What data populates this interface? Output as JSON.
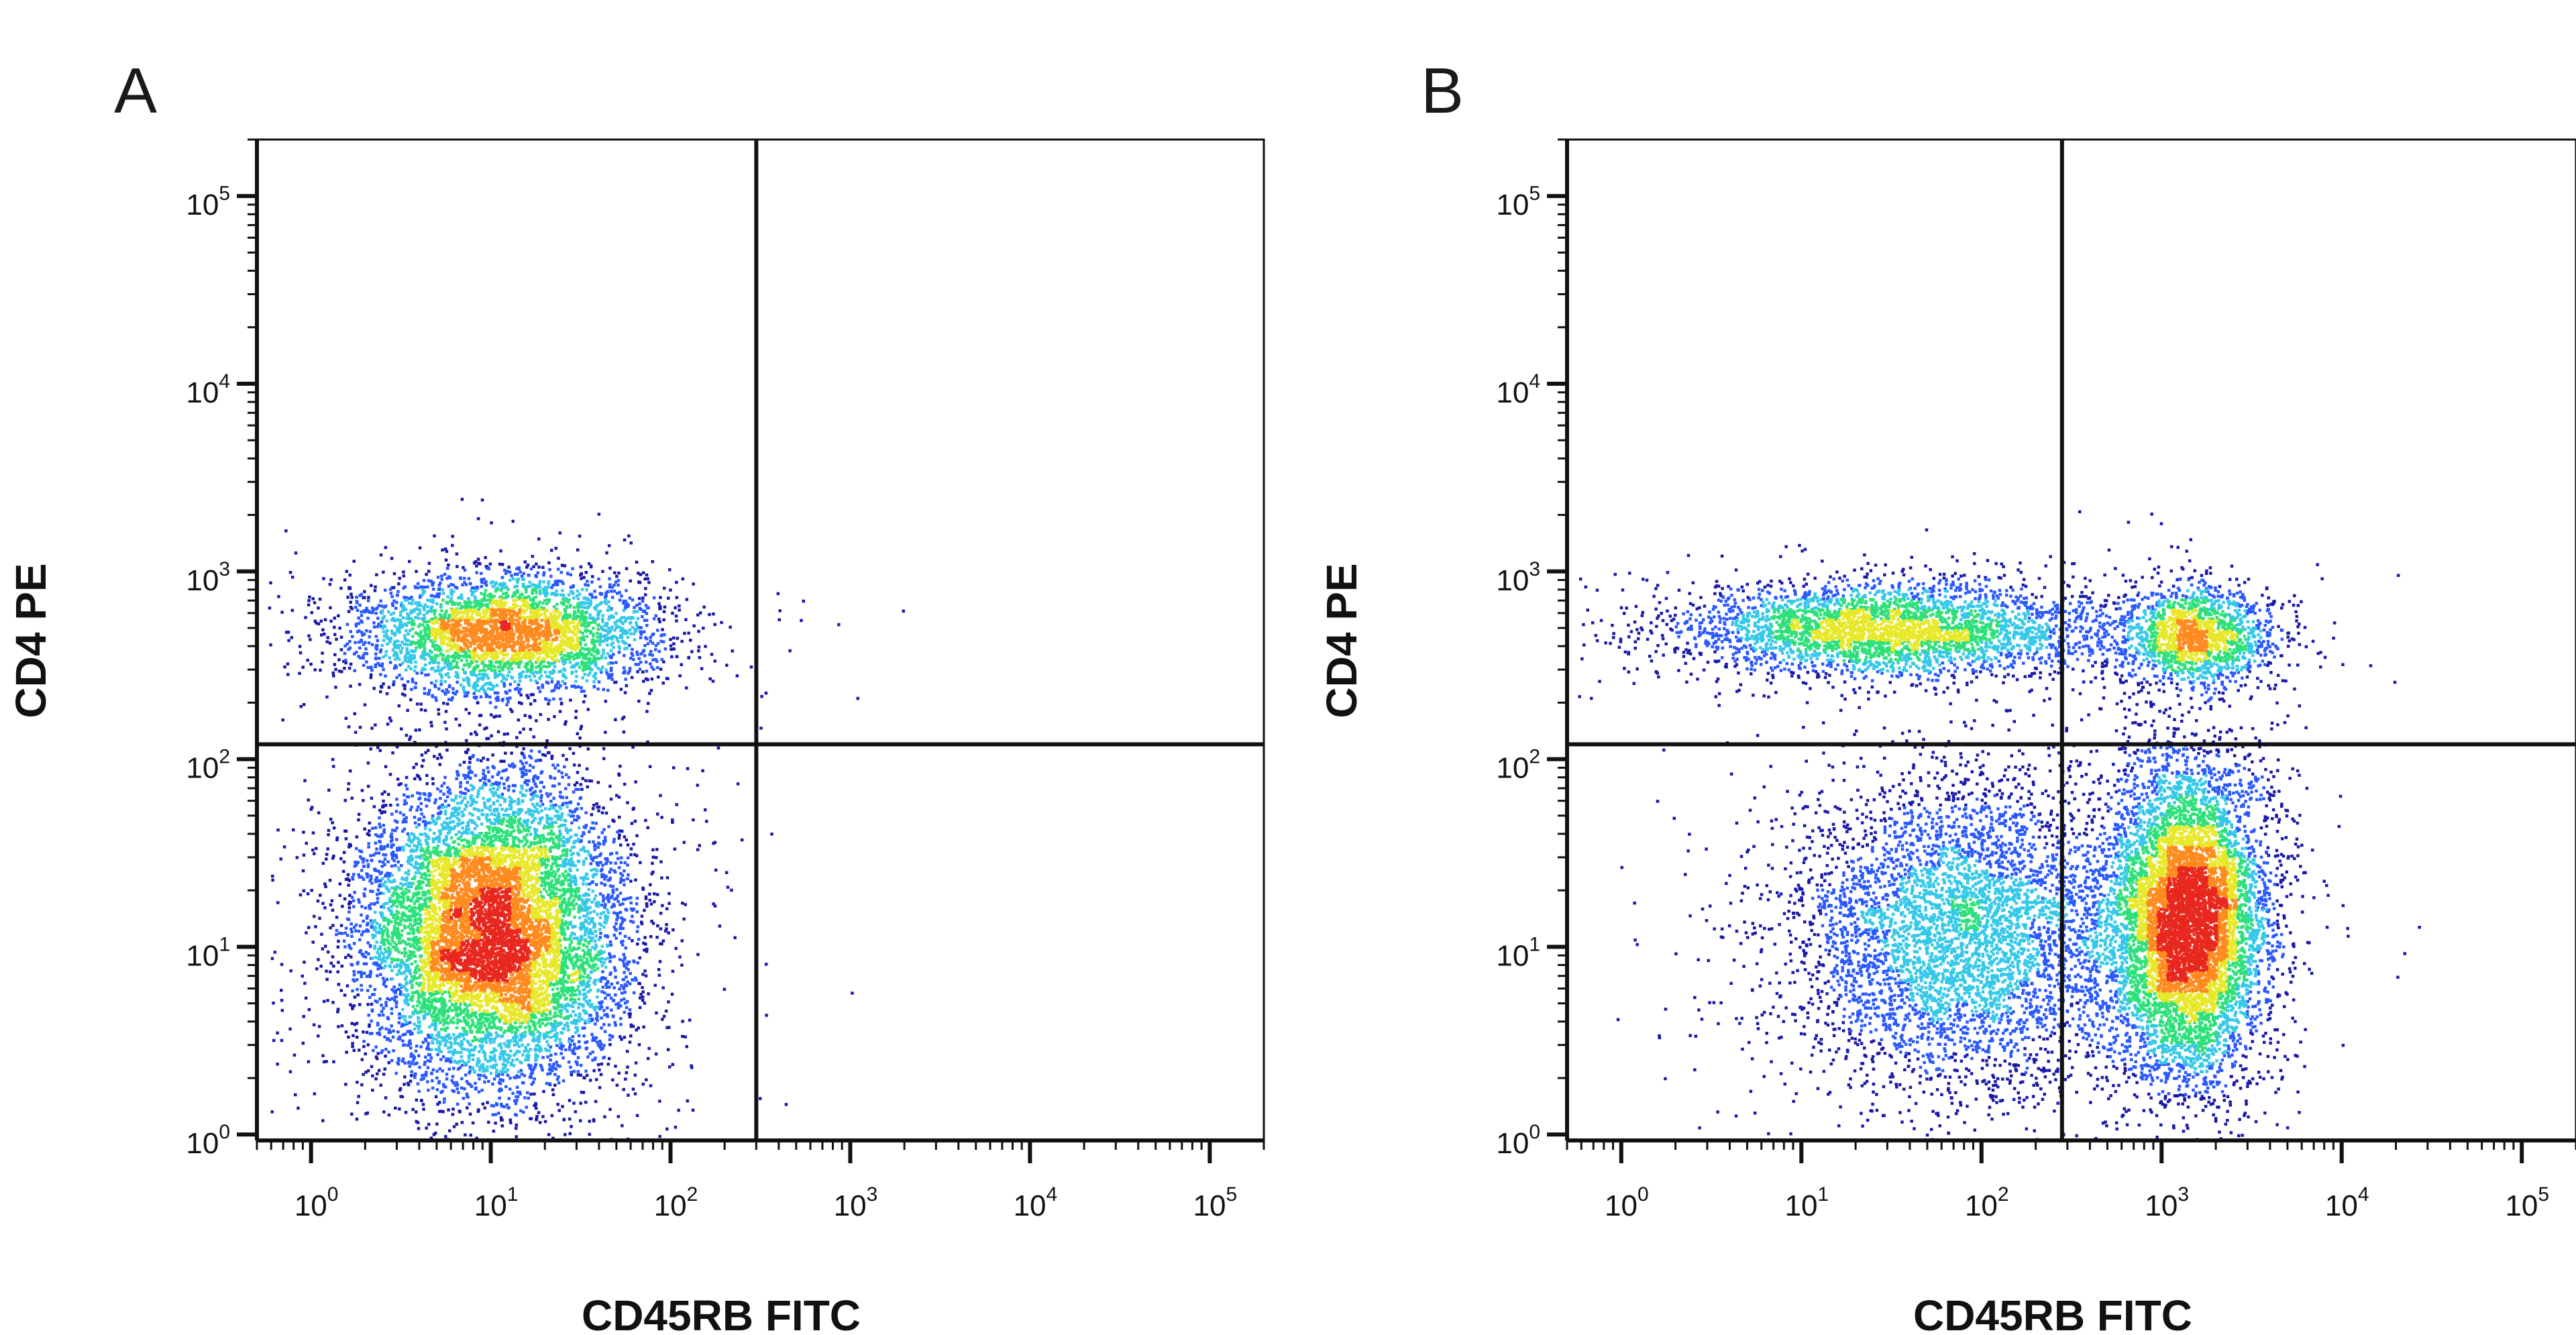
{
  "chart_data": [
    {
      "type": "scatter",
      "panel_label": "A",
      "xlabel": "CD45RB FITC",
      "ylabel": "CD4 PE",
      "x_scale": "log",
      "y_scale": "log",
      "x_tick_labels": [
        "10^0",
        "10^1",
        "10^2",
        "10^3",
        "10^4",
        "10^5"
      ],
      "y_tick_labels": [
        "10^0",
        "10^1",
        "10^2",
        "10^3",
        "10^4",
        "10^5"
      ],
      "xlim": [
        0.5,
        200000
      ],
      "ylim": [
        0.93,
        200000
      ],
      "quadrant_gate": {
        "x": 300,
        "y": 120
      },
      "grid": false,
      "colormap": [
        "#1a1aa8",
        "#2a58ff",
        "#35c8e8",
        "#2ee07a",
        "#e8e82a",
        "#ff8a1e",
        "#e8281e"
      ],
      "populations": [
        {
          "center_x": 10,
          "center_y": 12,
          "spread_log_x": 0.38,
          "spread_log_y": 0.42,
          "count": 9000
        },
        {
          "center_x": 12,
          "center_y": 480,
          "spread_log_x": 0.42,
          "spread_log_y": 0.16,
          "count": 3500
        }
      ]
    },
    {
      "type": "scatter",
      "panel_label": "B",
      "xlabel": "CD45RB FITC",
      "ylabel": "CD4 PE",
      "x_scale": "log",
      "y_scale": "log",
      "x_tick_labels": [
        "10^0",
        "10^1",
        "10^2",
        "10^3",
        "10^4",
        "10^5"
      ],
      "y_tick_labels": [
        "10^0",
        "10^1",
        "10^2",
        "10^3",
        "10^4",
        "10^5"
      ],
      "xlim": [
        0.5,
        200000
      ],
      "ylim": [
        0.93,
        200000
      ],
      "quadrant_gate": {
        "x": 280,
        "y": 120
      },
      "grid": false,
      "colormap": [
        "#1a1aa8",
        "#2a58ff",
        "#35c8e8",
        "#2ee07a",
        "#e8e82a",
        "#ff8a1e",
        "#e8281e"
      ],
      "populations": [
        {
          "center_x": 1400,
          "center_y": 14,
          "spread_log_x": 0.22,
          "spread_log_y": 0.42,
          "count": 7000
        },
        {
          "center_x": 80,
          "center_y": 12,
          "spread_log_x": 0.5,
          "spread_log_y": 0.42,
          "count": 5000
        },
        {
          "center_x": 30,
          "center_y": 500,
          "spread_log_x": 0.6,
          "spread_log_y": 0.13,
          "count": 3500
        },
        {
          "center_x": 1500,
          "center_y": 460,
          "spread_log_x": 0.22,
          "spread_log_y": 0.13,
          "count": 1600
        }
      ]
    }
  ]
}
